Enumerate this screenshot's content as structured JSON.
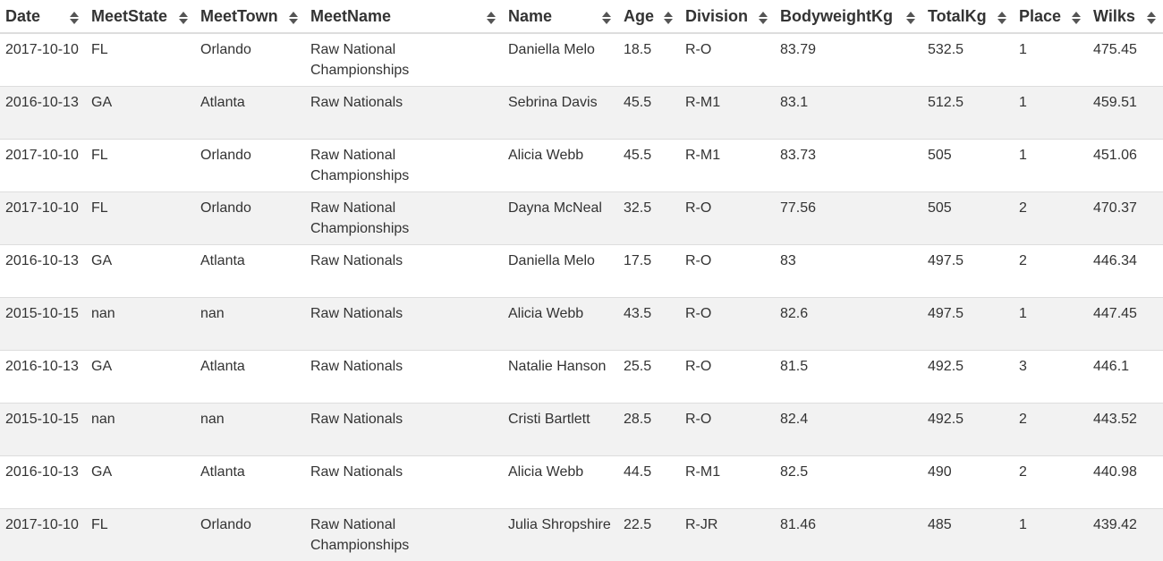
{
  "table": {
    "columns": [
      {
        "key": "date",
        "label": "Date",
        "icon": "sort-icon"
      },
      {
        "key": "meet_state",
        "label": "MeetState",
        "icon": "sort-icon"
      },
      {
        "key": "meet_town",
        "label": "MeetTown",
        "icon": "sort-icon"
      },
      {
        "key": "meet_name",
        "label": "MeetName",
        "icon": "sort-icon"
      },
      {
        "key": "name",
        "label": "Name",
        "icon": "sort-icon"
      },
      {
        "key": "age",
        "label": "Age",
        "icon": "sort-icon"
      },
      {
        "key": "division",
        "label": "Division",
        "icon": "sort-icon"
      },
      {
        "key": "bodyweight_kg",
        "label": "BodyweightKg",
        "icon": "sort-icon"
      },
      {
        "key": "total_kg",
        "label": "TotalKg",
        "icon": "sort-icon"
      },
      {
        "key": "place",
        "label": "Place",
        "icon": "sort-icon"
      },
      {
        "key": "wilks",
        "label": "Wilks",
        "icon": "sort-icon"
      }
    ],
    "rows": [
      {
        "date": "2017-10-10",
        "meet_state": "FL",
        "meet_town": "Orlando",
        "meet_name": "Raw National Championships",
        "name": "Daniella Melo",
        "age": "18.5",
        "division": "R-O",
        "bodyweight_kg": "83.79",
        "total_kg": "532.5",
        "place": "1",
        "wilks": "475.45"
      },
      {
        "date": "2016-10-13",
        "meet_state": "GA",
        "meet_town": "Atlanta",
        "meet_name": "Raw Nationals",
        "name": "Sebrina Davis",
        "age": "45.5",
        "division": "R-M1",
        "bodyweight_kg": "83.1",
        "total_kg": "512.5",
        "place": "1",
        "wilks": "459.51"
      },
      {
        "date": "2017-10-10",
        "meet_state": "FL",
        "meet_town": "Orlando",
        "meet_name": "Raw National Championships",
        "name": "Alicia Webb",
        "age": "45.5",
        "division": "R-M1",
        "bodyweight_kg": "83.73",
        "total_kg": "505",
        "place": "1",
        "wilks": "451.06"
      },
      {
        "date": "2017-10-10",
        "meet_state": "FL",
        "meet_town": "Orlando",
        "meet_name": "Raw National Championships",
        "name": "Dayna McNeal",
        "age": "32.5",
        "division": "R-O",
        "bodyweight_kg": "77.56",
        "total_kg": "505",
        "place": "2",
        "wilks": "470.37"
      },
      {
        "date": "2016-10-13",
        "meet_state": "GA",
        "meet_town": "Atlanta",
        "meet_name": "Raw Nationals",
        "name": "Daniella Melo",
        "age": "17.5",
        "division": "R-O",
        "bodyweight_kg": "83",
        "total_kg": "497.5",
        "place": "2",
        "wilks": "446.34"
      },
      {
        "date": "2015-10-15",
        "meet_state": "nan",
        "meet_town": "nan",
        "meet_name": "Raw Nationals",
        "name": "Alicia Webb",
        "age": "43.5",
        "division": "R-O",
        "bodyweight_kg": "82.6",
        "total_kg": "497.5",
        "place": "1",
        "wilks": "447.45"
      },
      {
        "date": "2016-10-13",
        "meet_state": "GA",
        "meet_town": "Atlanta",
        "meet_name": "Raw Nationals",
        "name": "Natalie Hanson",
        "age": "25.5",
        "division": "R-O",
        "bodyweight_kg": "81.5",
        "total_kg": "492.5",
        "place": "3",
        "wilks": "446.1"
      },
      {
        "date": "2015-10-15",
        "meet_state": "nan",
        "meet_town": "nan",
        "meet_name": "Raw Nationals",
        "name": "Cristi Bartlett",
        "age": "28.5",
        "division": "R-O",
        "bodyweight_kg": "82.4",
        "total_kg": "492.5",
        "place": "2",
        "wilks": "443.52"
      },
      {
        "date": "2016-10-13",
        "meet_state": "GA",
        "meet_town": "Atlanta",
        "meet_name": "Raw Nationals",
        "name": "Alicia Webb",
        "age": "44.5",
        "division": "R-M1",
        "bodyweight_kg": "82.5",
        "total_kg": "490",
        "place": "2",
        "wilks": "440.98"
      },
      {
        "date": "2017-10-10",
        "meet_state": "FL",
        "meet_town": "Orlando",
        "meet_name": "Raw National Championships",
        "name": "Julia Shropshire",
        "age": "22.5",
        "division": "R-JR",
        "bodyweight_kg": "81.46",
        "total_kg": "485",
        "place": "1",
        "wilks": "439.42"
      }
    ]
  },
  "colors": {
    "text": "#333333",
    "stripe": "#f2f2f2",
    "border": "#dddddd",
    "sort_icon": "#555555"
  }
}
